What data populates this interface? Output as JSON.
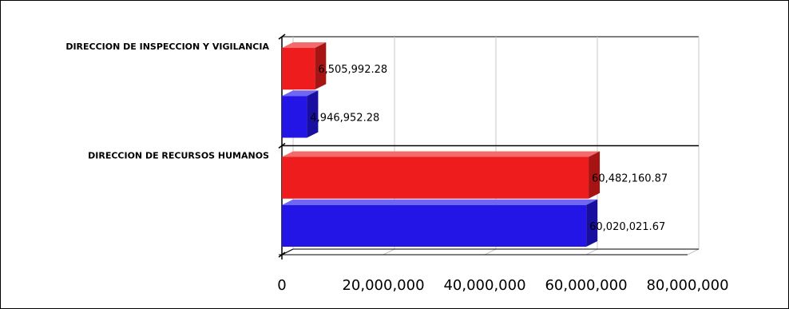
{
  "chart_data": {
    "type": "bar",
    "orientation": "horizontal",
    "style": "3d",
    "categories": [
      "DIRECCION DE INSPECCION Y VIGILANCIA",
      "DIRECCION DE RECURSOS HUMANOS"
    ],
    "series": [
      {
        "color": "#ee1c1c",
        "values": [
          6505992.28,
          60482160.87
        ],
        "labels": [
          "6,505,992.28",
          "60,482,160.87"
        ]
      },
      {
        "color": "#2215e6",
        "values": [
          4946952.28,
          60020021.67
        ],
        "labels": [
          "4,946,952.28",
          "60,020,021.67"
        ]
      }
    ],
    "xlim": [
      0,
      80000000
    ],
    "xticks": [
      0,
      20000000,
      40000000,
      60000000,
      80000000
    ],
    "xtick_labels": [
      "0",
      "20,000,000",
      "40,000,000",
      "60,000,000",
      "80,000,000"
    ],
    "grid": true,
    "title": "",
    "xlabel": "",
    "ylabel": ""
  }
}
